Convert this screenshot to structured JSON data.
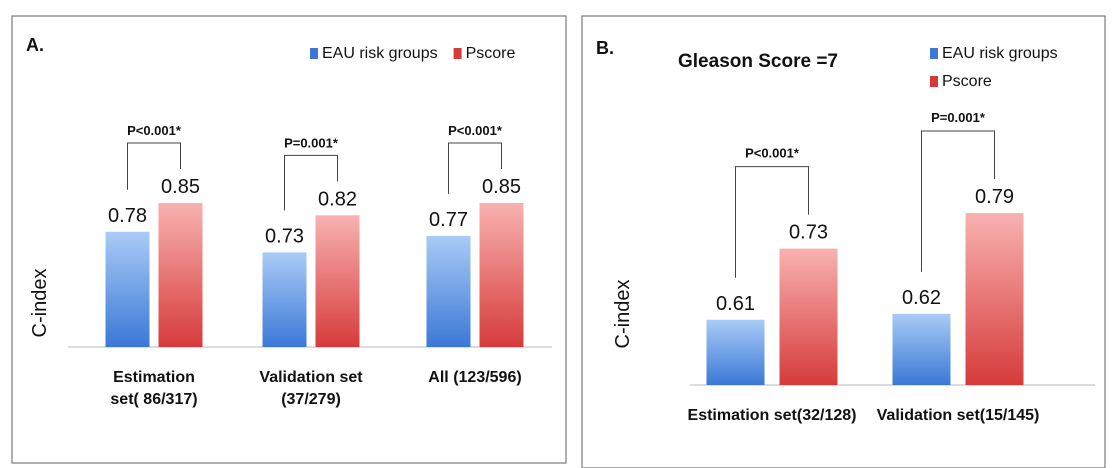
{
  "colors": {
    "eau_top": "#a9cbf6",
    "eau_bottom": "#3b78d6",
    "pscore_top": "#f8b2b0",
    "pscore_bottom": "#d63b3b"
  },
  "chart_data": [
    {
      "type": "bar",
      "panel_label": "A.",
      "title": "",
      "xlabel": "",
      "ylabel": "C-index",
      "ylim": [
        0.5,
        0.9
      ],
      "grid": false,
      "legend_position": "top-right",
      "legend_layout": "horizontal",
      "categories": [
        "Estimation set( 86/317)",
        "Validation set (37/279)",
        "All (123/596)"
      ],
      "category_lines": [
        [
          "Estimation",
          "set( 86/317)"
        ],
        [
          "Validation set",
          "(37/279)"
        ],
        [
          "All (123/596)"
        ]
      ],
      "series": [
        {
          "name": "EAU risk groups",
          "values": [
            0.78,
            0.73,
            0.77
          ],
          "labels": [
            "0.78",
            "0.73",
            "0.77"
          ]
        },
        {
          "name": "Pscore",
          "values": [
            0.85,
            0.82,
            0.85
          ],
          "labels": [
            "0.85",
            "0.82",
            "0.85"
          ]
        }
      ],
      "significance": [
        "P<0.001*",
        "P=0.001*",
        "P<0.001*"
      ]
    },
    {
      "type": "bar",
      "panel_label": "B.",
      "title": "Gleason Score =7",
      "xlabel": "",
      "ylabel": "C-index",
      "ylim": [
        0.5,
        0.9
      ],
      "grid": false,
      "legend_position": "top-right",
      "legend_layout": "vertical",
      "categories": [
        "Estimation set(32/128)",
        "Validation set(15/145)"
      ],
      "category_lines": [
        [
          "Estimation set(32/128)"
        ],
        [
          "Validation set(15/145)"
        ]
      ],
      "series": [
        {
          "name": "EAU risk groups",
          "values": [
            0.61,
            0.62
          ],
          "labels": [
            "0.61",
            "0.62"
          ]
        },
        {
          "name": "Pscore",
          "values": [
            0.73,
            0.79
          ],
          "labels": [
            "0.73",
            "0.79"
          ]
        }
      ],
      "significance": [
        "P<0.001*",
        "P=0.001*"
      ]
    }
  ]
}
